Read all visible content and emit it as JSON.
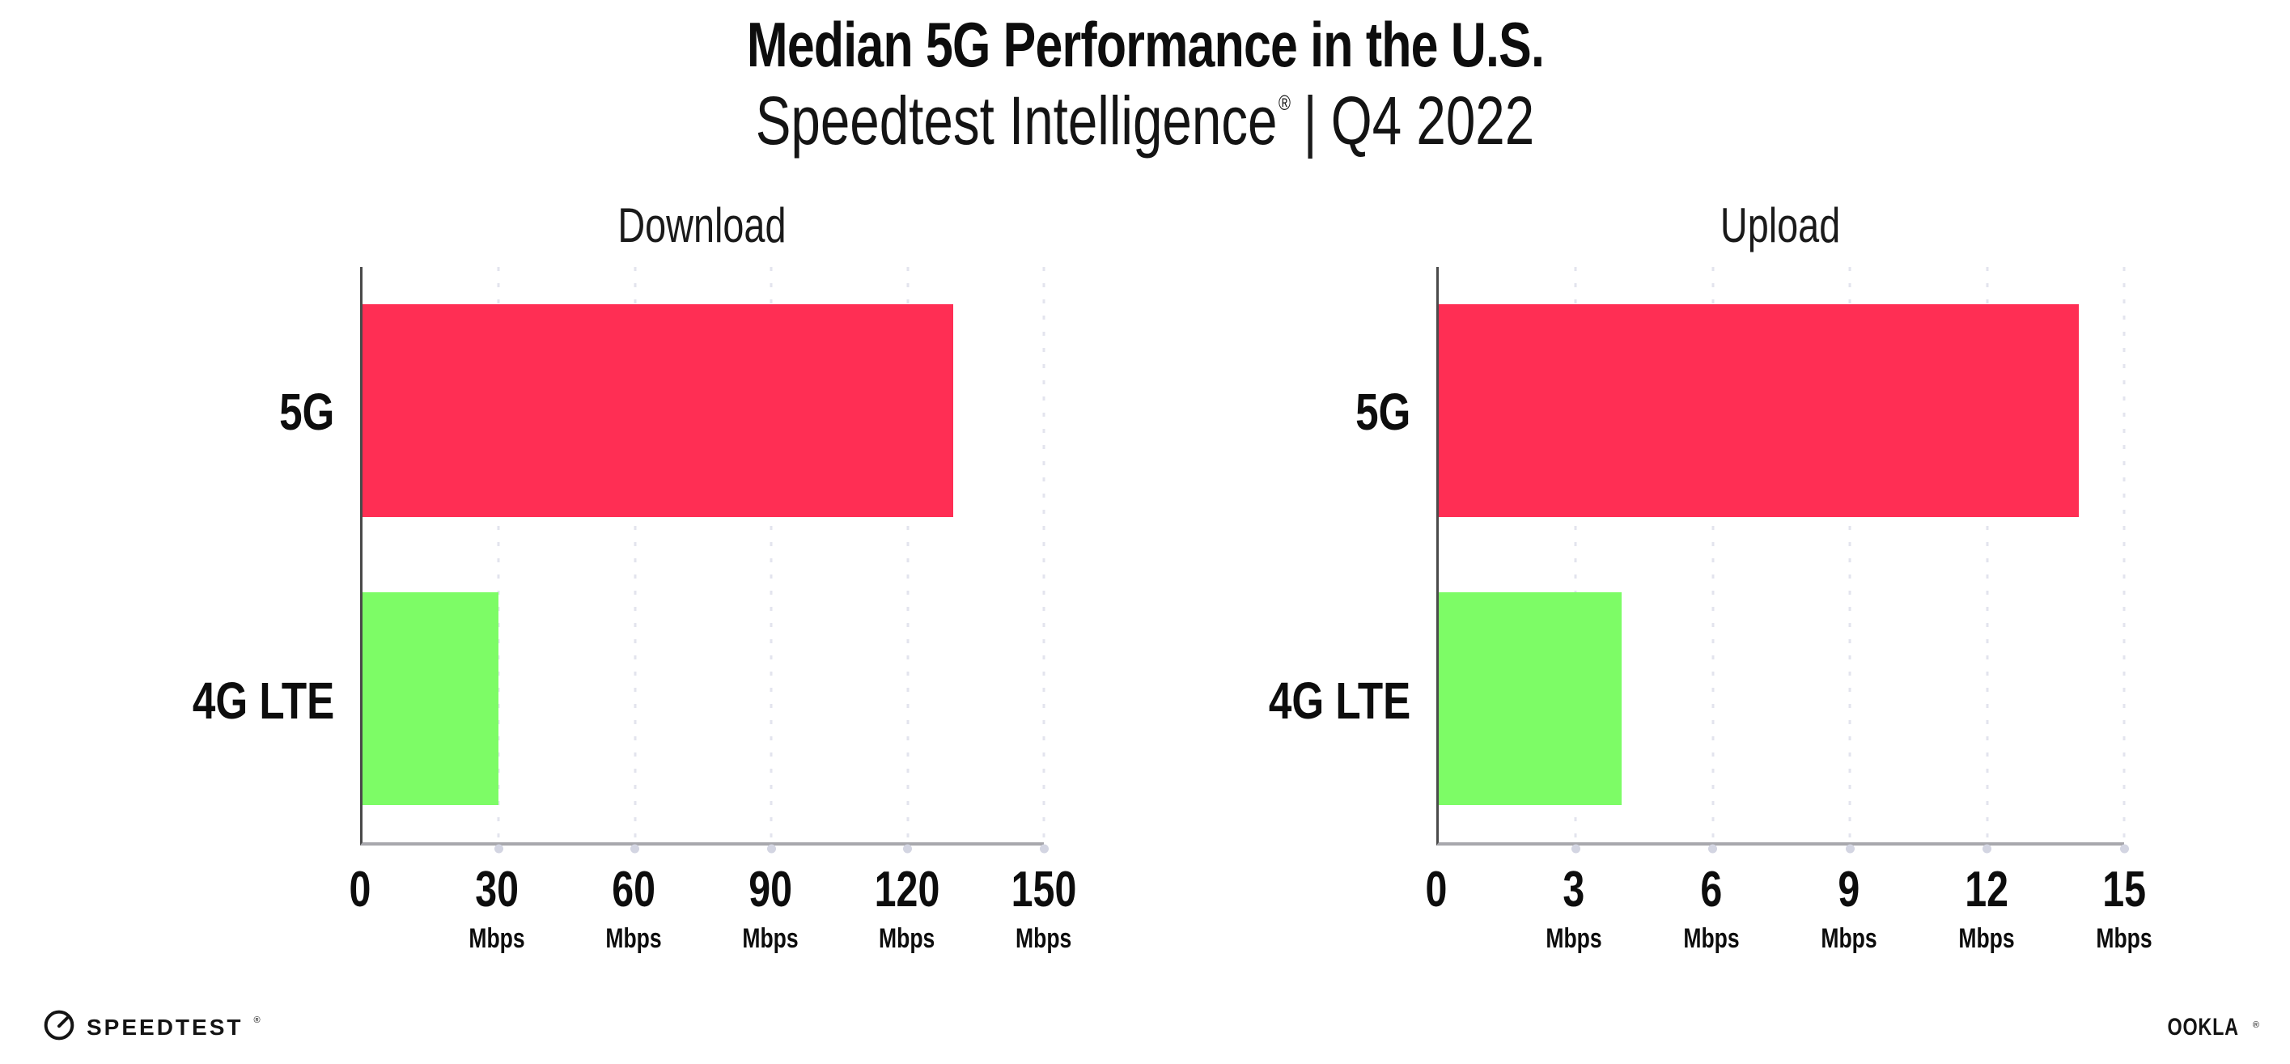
{
  "header": {
    "title": "Median 5G Performance in the U.S.",
    "subtitle": {
      "brand": "Speedtest Intelligence",
      "registered_mark": "®",
      "divider": "|",
      "period": "Q4 2022"
    }
  },
  "chart_data": [
    {
      "type": "bar",
      "orientation": "horizontal",
      "title": "Download",
      "categories": [
        "5G",
        "4G LTE"
      ],
      "values": [
        130,
        30
      ],
      "unit": "Mbps",
      "xlabel": "",
      "ylabel": "",
      "xlim": [
        0,
        150
      ],
      "xticks": [
        0,
        30,
        60,
        90,
        120,
        150
      ],
      "bar_colors": [
        "#FF2E54",
        "#7DFC66"
      ],
      "grid": "dotted-vertical-gridlines",
      "legend_position": "none"
    },
    {
      "type": "bar",
      "orientation": "horizontal",
      "title": "Upload",
      "categories": [
        "5G",
        "4G LTE"
      ],
      "values": [
        14,
        4
      ],
      "unit": "Mbps",
      "xlabel": "",
      "ylabel": "",
      "xlim": [
        0,
        15
      ],
      "xticks": [
        0,
        3,
        6,
        9,
        12,
        15
      ],
      "bar_colors": [
        "#FF2E54",
        "#7DFC66"
      ],
      "grid": "dotted-vertical-gridlines",
      "legend_position": "none"
    }
  ],
  "footer": {
    "speedtest": {
      "label": "SPEEDTEST",
      "mark": "®",
      "icon": "speedtest-gauge-icon"
    },
    "ookla": {
      "label": "OOKLA",
      "mark": "®"
    }
  },
  "colors": {
    "bar_5g": "#FF2E54",
    "bar_4g_lte": "#7DFC66",
    "background": "#ffffff",
    "text": "#111111",
    "y_axis_line": "#4a4a4a",
    "x_axis_line": "#a8a8ad",
    "gridline_dots": "#e3e4ee"
  }
}
